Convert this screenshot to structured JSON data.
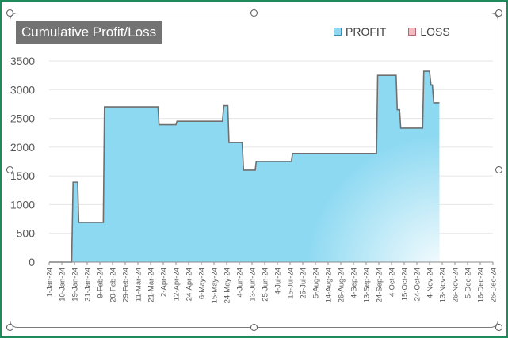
{
  "chart_data": {
    "type": "area",
    "title": "Cumulative Profit/Loss",
    "xlabel": "",
    "ylabel": "",
    "ylim": [
      0,
      3500
    ],
    "yticks": [
      0,
      500,
      1000,
      1500,
      2000,
      2500,
      3000,
      3500
    ],
    "grid": true,
    "legend_position": "top-right",
    "x_tick_labels": [
      "1-Jan-24",
      "10-Jan-24",
      "19-Jan-24",
      "31-Jan-24",
      "9-Feb-24",
      "20-Feb-24",
      "29-Feb-24",
      "11-Mar-24",
      "21-Mar-24",
      "2-Apr-24",
      "12-Apr-24",
      "24-Apr-24",
      "6-May-24",
      "15-May-24",
      "24-May-24",
      "4-Jun-24",
      "13-Jun-24",
      "25-Jun-24",
      "4-Jul-24",
      "15-Jul-24",
      "25-Jul-24",
      "5-Aug-24",
      "14-Aug-24",
      "26-Aug-24",
      "4-Sep-24",
      "13-Sep-24",
      "24-Sep-24",
      "4-Oct-24",
      "15-Oct-24",
      "24-Oct-24",
      "4-Nov-24",
      "13-Nov-24",
      "26-Nov-24",
      "5-Dec-24",
      "16-Dec-24",
      "26-Dec-24"
    ],
    "series": [
      {
        "name": "PROFIT",
        "color": "#8dd9f2",
        "points": [
          [
            "1-Jan-24",
            0
          ],
          [
            "17-Jan-24",
            0
          ],
          [
            "18-Jan-24",
            1390
          ],
          [
            "22-Jan-24",
            1390
          ],
          [
            "23-Jan-24",
            690
          ],
          [
            "12-Feb-24",
            690
          ],
          [
            "13-Feb-24",
            2700
          ],
          [
            "28-Mar-24",
            2700
          ],
          [
            "29-Mar-24",
            2390
          ],
          [
            "12-Apr-24",
            2390
          ],
          [
            "13-Apr-24",
            2450
          ],
          [
            "21-May-24",
            2450
          ],
          [
            "22-May-24",
            2720
          ],
          [
            "25-May-24",
            2720
          ],
          [
            "26-May-24",
            2080
          ],
          [
            "6-Jun-24",
            2080
          ],
          [
            "7-Jun-24",
            1600
          ],
          [
            "16-Jun-24",
            1600
          ],
          [
            "17-Jun-24",
            1750
          ],
          [
            "16-Jul-24",
            1750
          ],
          [
            "17-Jul-24",
            1890
          ],
          [
            "22-Sep-24",
            1890
          ],
          [
            "23-Sep-24",
            3250
          ],
          [
            "8-Oct-24",
            3250
          ],
          [
            "9-Oct-24",
            2650
          ],
          [
            "11-Oct-24",
            2650
          ],
          [
            "12-Oct-24",
            2330
          ],
          [
            "29-Oct-24",
            2330
          ],
          [
            "30-Oct-24",
            3320
          ],
          [
            "4-Nov-24",
            3320
          ],
          [
            "5-Nov-24",
            3080
          ],
          [
            "6-Nov-24",
            3080
          ],
          [
            "7-Nov-24",
            2770
          ],
          [
            "11-Nov-24",
            2770
          ]
        ]
      },
      {
        "name": "LOSS",
        "color": "#f4b8c1",
        "points": []
      }
    ]
  }
}
